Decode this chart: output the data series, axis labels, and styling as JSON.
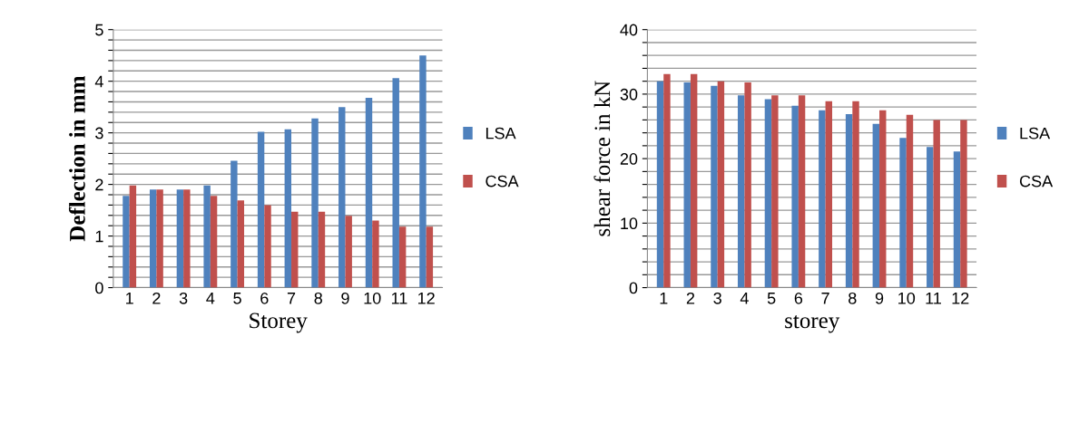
{
  "chart_data": [
    {
      "type": "bar",
      "xlabel": "Storey",
      "ylabel": "Deflection in mm",
      "categories": [
        "1",
        "2",
        "3",
        "4",
        "5",
        "6",
        "7",
        "8",
        "9",
        "10",
        "11",
        "12"
      ],
      "series": [
        {
          "name": "LSA",
          "color": "#4f81bd",
          "values": [
            1.78,
            1.9,
            1.9,
            1.98,
            2.46,
            3.02,
            3.07,
            3.28,
            3.5,
            3.68,
            4.06,
            4.5
          ]
        },
        {
          "name": "CSA",
          "color": "#c0504d",
          "values": [
            1.98,
            1.9,
            1.9,
            1.78,
            1.69,
            1.6,
            1.47,
            1.47,
            1.39,
            1.3,
            1.18,
            1.18
          ]
        }
      ],
      "ylim": [
        0,
        5
      ],
      "yticks": [
        0,
        {
          "value": 0.2,
          "label": null
        },
        {
          "value": 0.4,
          "label": null
        },
        {
          "value": 0.6,
          "label": null
        },
        {
          "value": 0.8,
          "label": null
        },
        1,
        {
          "value": 1.2,
          "label": null
        },
        {
          "value": 1.4,
          "label": null
        },
        {
          "value": 1.6,
          "label": null
        },
        {
          "value": 1.8,
          "label": null
        },
        2,
        {
          "value": 2.2,
          "label": null
        },
        {
          "value": 2.4,
          "label": null
        },
        {
          "value": 2.6,
          "label": null
        },
        {
          "value": 2.8,
          "label": null
        },
        3,
        {
          "value": 3.2,
          "label": null
        },
        {
          "value": 3.4,
          "label": null
        },
        {
          "value": 3.6,
          "label": null
        },
        {
          "value": 3.8,
          "label": null
        },
        4,
        {
          "value": 4.2,
          "label": null
        },
        {
          "value": 4.4,
          "label": null
        },
        {
          "value": 4.6,
          "label": null
        },
        {
          "value": 4.8,
          "label": null
        },
        5
      ],
      "grid": "y",
      "legend": "right"
    },
    {
      "type": "bar",
      "xlabel": "storey",
      "ylabel": "shear force in kN",
      "categories": [
        "1",
        "2",
        "3",
        "4",
        "5",
        "6",
        "7",
        "8",
        "9",
        "10",
        "11",
        "12"
      ],
      "series": [
        {
          "name": "LSA",
          "color": "#4f81bd",
          "values": [
            32.0,
            31.8,
            31.3,
            29.8,
            29.2,
            28.2,
            27.5,
            26.9,
            25.4,
            23.2,
            21.8,
            21.1
          ]
        },
        {
          "name": "CSA",
          "color": "#c0504d",
          "values": [
            33.1,
            33.1,
            32.0,
            31.8,
            29.8,
            29.8,
            28.9,
            28.9,
            27.5,
            26.8,
            26.0,
            26.0
          ]
        }
      ],
      "ylim": [
        0,
        40
      ],
      "yticks": [
        0,
        {
          "value": 2,
          "label": null
        },
        {
          "value": 4,
          "label": null
        },
        {
          "value": 6,
          "label": null
        },
        {
          "value": 8,
          "label": null
        },
        10,
        {
          "value": 12,
          "label": null
        },
        {
          "value": 14,
          "label": null
        },
        {
          "value": 16,
          "label": null
        },
        {
          "value": 18,
          "label": null
        },
        20,
        {
          "value": 22,
          "label": null
        },
        {
          "value": 24,
          "label": null
        },
        {
          "value": 26,
          "label": null
        },
        {
          "value": 28,
          "label": null
        },
        30,
        {
          "value": 32,
          "label": null
        },
        {
          "value": 34,
          "label": null
        },
        {
          "value": 36,
          "label": null
        },
        {
          "value": 38,
          "label": null
        },
        40
      ],
      "grid": "y",
      "legend": "right"
    }
  ]
}
